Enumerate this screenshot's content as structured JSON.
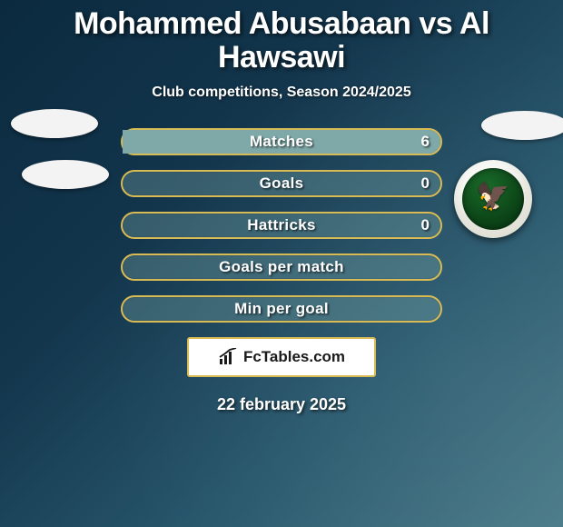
{
  "colors": {
    "bg_gradient": [
      "#0b2a3f",
      "#13364d",
      "#2a5a6f",
      "#4a7a88"
    ],
    "row_border": "#d9bb56",
    "row_fill": "#7fa8a8",
    "text": "#ffffff",
    "brand_bg": "#ffffff",
    "brand_text": "#1a1a1a"
  },
  "typography": {
    "title_fontsize": 34,
    "subtitle_fontsize": 16,
    "row_label_fontsize": 17,
    "date_fontsize": 18,
    "font_family": "Arial"
  },
  "title": "Mohammed Abusabaan vs Al Hawsawi",
  "subtitle": "Club competitions, Season 2024/2025",
  "rows": [
    {
      "label": "Matches",
      "left": "",
      "right": "6",
      "fill_left_pct": 0,
      "fill_right_pct": 100
    },
    {
      "label": "Goals",
      "left": "",
      "right": "0",
      "fill_left_pct": 0,
      "fill_right_pct": 0
    },
    {
      "label": "Hattricks",
      "left": "",
      "right": "0",
      "fill_left_pct": 0,
      "fill_right_pct": 0
    },
    {
      "label": "Goals per match",
      "left": "",
      "right": "",
      "fill_left_pct": 0,
      "fill_right_pct": 0
    },
    {
      "label": "Min per goal",
      "left": "",
      "right": "",
      "fill_left_pct": 0,
      "fill_right_pct": 0
    }
  ],
  "brand": "FcTables.com",
  "date": "22 february 2025",
  "badge": {
    "emoji": "🦅"
  }
}
